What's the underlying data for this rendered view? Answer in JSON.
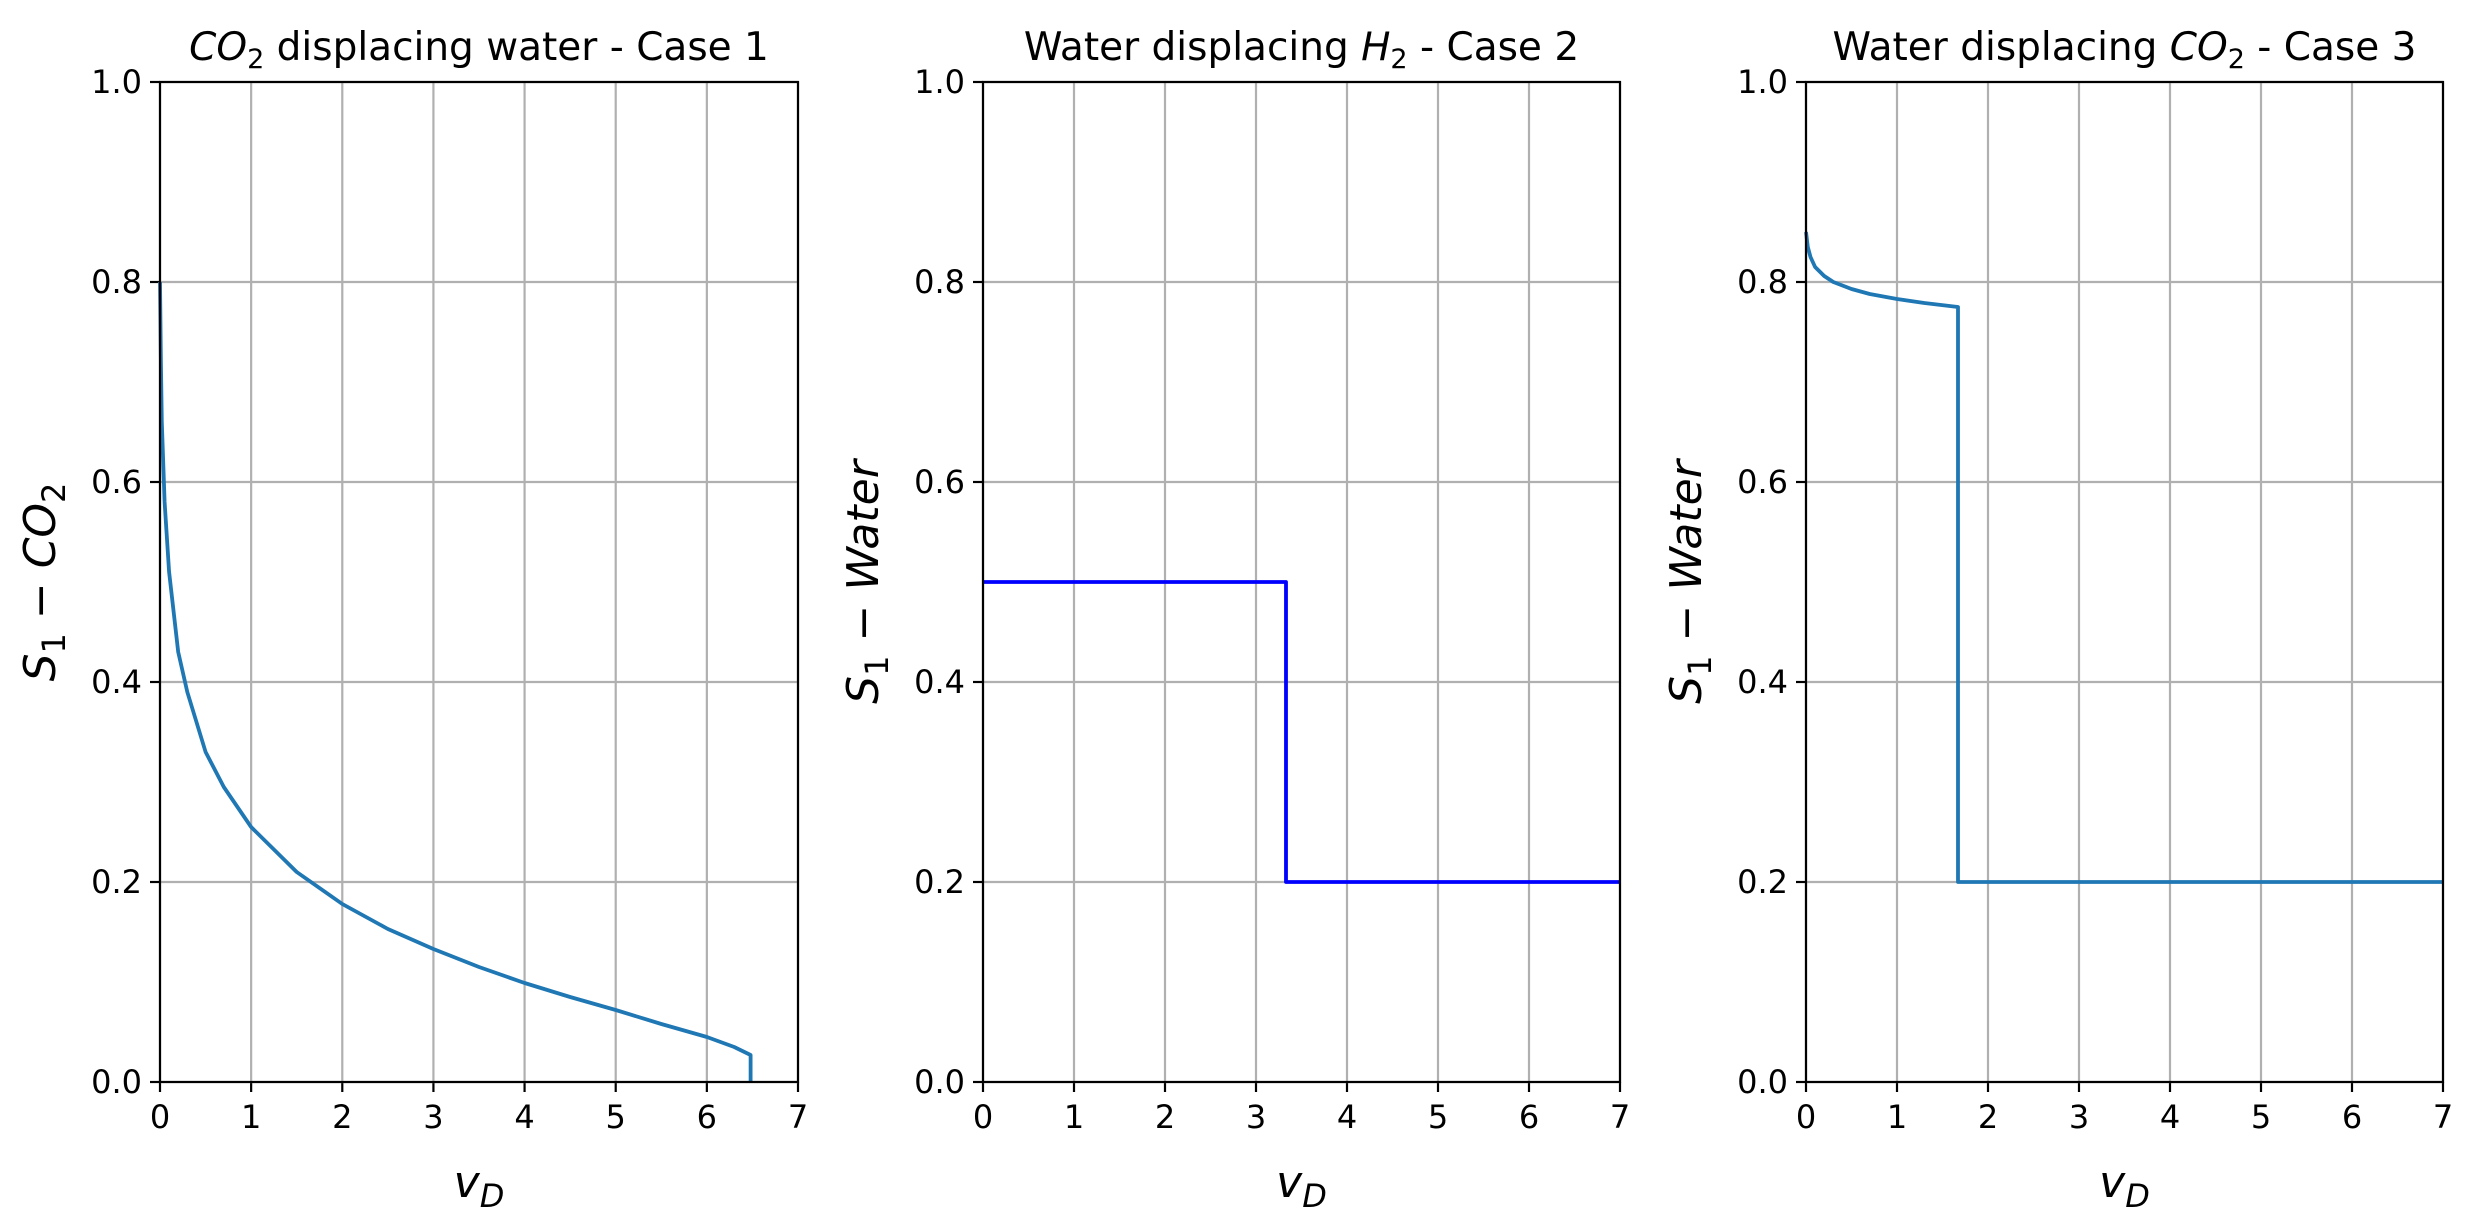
{
  "chart_data": [
    {
      "type": "line",
      "title": "CO₂ displacing water - Case 1",
      "title_parts": {
        "italic": "CO",
        "sub": "2",
        "rest": " displacing water - Case 1"
      },
      "xlabel": "v_D",
      "ylabel": "S₁ − CO₂",
      "xlim": [
        0,
        7
      ],
      "ylim": [
        0,
        1
      ],
      "xticks": [
        "0",
        "1",
        "2",
        "3",
        "4",
        "5",
        "6",
        "7"
      ],
      "yticks": [
        "0.0",
        "0.2",
        "0.4",
        "0.6",
        "0.8",
        "1.0"
      ],
      "grid": true,
      "series": [
        {
          "color": "#1f77b4",
          "x": [
            0,
            0.01,
            0.02,
            0.05,
            0.1,
            0.2,
            0.3,
            0.5,
            0.7,
            1.0,
            1.5,
            2.0,
            2.5,
            3.0,
            3.5,
            4.0,
            4.5,
            5.0,
            5.5,
            6.0,
            6.3,
            6.48,
            6.48
          ],
          "y": [
            0.8,
            0.72,
            0.66,
            0.58,
            0.51,
            0.43,
            0.39,
            0.33,
            0.295,
            0.255,
            0.21,
            0.178,
            0.153,
            0.133,
            0.115,
            0.099,
            0.085,
            0.072,
            0.058,
            0.045,
            0.035,
            0.027,
            0.0
          ]
        }
      ]
    },
    {
      "type": "line",
      "title": "Water displacing H₂ -  Case 2",
      "title_parts": {
        "pre": "Water displacing ",
        "italic": "H",
        "sub": "2",
        "rest": " -  Case 2"
      },
      "xlabel": "v_D",
      "ylabel": "S₁ − Water",
      "xlim": [
        0,
        7
      ],
      "ylim": [
        0,
        1
      ],
      "xticks": [
        "0",
        "1",
        "2",
        "3",
        "4",
        "5",
        "6",
        "7"
      ],
      "yticks": [
        "0.0",
        "0.2",
        "0.4",
        "0.6",
        "0.8",
        "1.0"
      ],
      "grid": true,
      "series": [
        {
          "color": "#0000ff",
          "x": [
            0,
            3.33,
            3.33,
            7
          ],
          "y": [
            0.5,
            0.5,
            0.2,
            0.2
          ]
        }
      ]
    },
    {
      "type": "line",
      "title": "Water displacing CO₂ -  Case 3",
      "title_parts": {
        "pre": "Water displacing ",
        "italic": "CO",
        "sub": "2",
        "rest": " -  Case 3"
      },
      "xlabel": "v_D",
      "ylabel": "S₁ − Water",
      "xlim": [
        0,
        7
      ],
      "ylim": [
        0,
        1
      ],
      "xticks": [
        "0",
        "1",
        "2",
        "3",
        "4",
        "5",
        "6",
        "7"
      ],
      "yticks": [
        "0.0",
        "0.2",
        "0.4",
        "0.6",
        "0.8",
        "1.0"
      ],
      "grid": true,
      "series": [
        {
          "color": "#1f77b4",
          "x": [
            0,
            0.02,
            0.05,
            0.1,
            0.2,
            0.3,
            0.5,
            0.7,
            1.0,
            1.3,
            1.67,
            1.67,
            7
          ],
          "y": [
            0.85,
            0.835,
            0.825,
            0.815,
            0.806,
            0.8,
            0.793,
            0.788,
            0.783,
            0.779,
            0.775,
            0.2,
            0.2
          ]
        }
      ]
    }
  ]
}
